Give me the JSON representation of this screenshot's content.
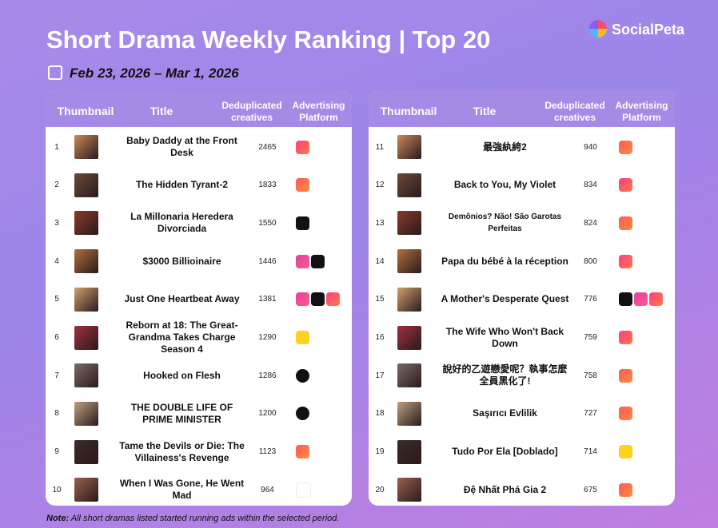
{
  "header": {
    "title": "Short Drama Weekly Ranking | Top 20",
    "date": "Feb 23, 2026 – Mar 1, 2026",
    "brand": "SocialPeta"
  },
  "tables": [
    {
      "columns": [
        "Thumbnail",
        "Title",
        "Deduplicated creatives",
        "Advertising Platform"
      ],
      "rows": [
        {
          "rank": 1,
          "title": "Baby Daddy at the Front Desk",
          "creatives": 2465
        },
        {
          "rank": 2,
          "title": "The Hidden Tyrant-2",
          "creatives": 1833
        },
        {
          "rank": 3,
          "title": "La Millonaria Heredera Divorciada",
          "creatives": 1550
        },
        {
          "rank": 4,
          "title": "$3000 Billioinaire",
          "creatives": 1446
        },
        {
          "rank": 5,
          "title": "Just One Heartbeat Away",
          "creatives": 1381
        },
        {
          "rank": 6,
          "title": "Reborn at 18: The Great-Grandma Takes Charge Season 4",
          "creatives": 1290
        },
        {
          "rank": 7,
          "title": "Hooked on Flesh",
          "creatives": 1286
        },
        {
          "rank": 8,
          "title": "THE DOUBLE LIFE OF PRIME MINISTER",
          "creatives": 1200
        },
        {
          "rank": 9,
          "title": "Tame the Devils or Die: The Villainess's Revenge",
          "creatives": 1123
        },
        {
          "rank": 10,
          "title": "When I Was Gone, He Went Mad",
          "creatives": 964
        }
      ]
    },
    {
      "columns": [
        "Thumbnail",
        "Title",
        "Deduplicated creatives",
        "Advertising Platform"
      ],
      "rows": [
        {
          "rank": 11,
          "title": "最強紈絝2",
          "creatives": 940
        },
        {
          "rank": 12,
          "title": "Back to You, My Violet",
          "creatives": 834
        },
        {
          "rank": 13,
          "title": "Demônios? Não! São Garotas Perfeitas",
          "creatives": 824
        },
        {
          "rank": 14,
          "title": "Papa du bébé à la réception",
          "creatives": 800
        },
        {
          "rank": 15,
          "title": "A Mother's Desperate Quest",
          "creatives": 776
        },
        {
          "rank": 16,
          "title": "The Wife Who Won't Back Down",
          "creatives": 759
        },
        {
          "rank": 17,
          "title": "說好的乙遊戀愛呢？執事怎麼全員黑化了!",
          "creatives": 758
        },
        {
          "rank": 18,
          "title": "Saşırıcı Evlilik",
          "creatives": 727
        },
        {
          "rank": 19,
          "title": "Tudo Por Ela [Doblado]",
          "creatives": 714
        },
        {
          "rank": 20,
          "title": "Đệ Nhất Phá Gia 2",
          "creatives": 675
        }
      ]
    }
  ],
  "note": {
    "label": "Note:",
    "text": "All short dramas listed started running ads within the selected period."
  }
}
